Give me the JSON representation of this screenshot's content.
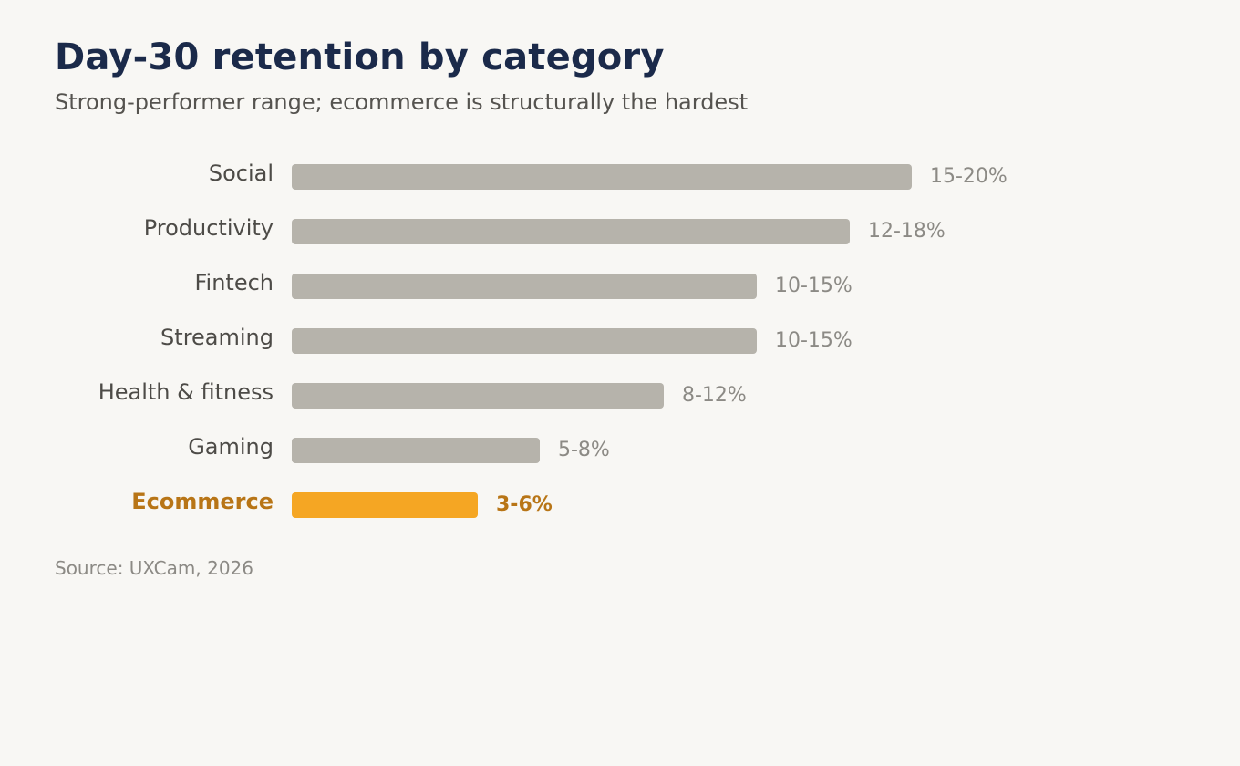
{
  "chart_data": {
    "type": "bar",
    "orientation": "horizontal",
    "title": "Day-30 retention by category",
    "subtitle": "Strong-performer range; ecommerce is structurally the hardest",
    "source": "Source: UXCam, 2026",
    "xlabel": "",
    "ylabel": "",
    "grid": false,
    "xlim": [
      0,
      20
    ],
    "categories": [
      "Social",
      "Productivity",
      "Fintech",
      "Streaming",
      "Health & fitness",
      "Gaming",
      "Ecommerce"
    ],
    "values": [
      20,
      18,
      15,
      15,
      12,
      8,
      6
    ],
    "value_labels": [
      "15-20%",
      "12-18%",
      "10-15%",
      "10-15%",
      "8-12%",
      "5-8%",
      "3-6%"
    ],
    "highlight_index": 6,
    "colors": {
      "bar": "#b6b3ab",
      "highlight_bar": "#f5a623",
      "category_label": "#4d4b47",
      "highlight_label": "#b87516",
      "value_label": "#8c8a85",
      "title": "#1b2a4a"
    }
  }
}
